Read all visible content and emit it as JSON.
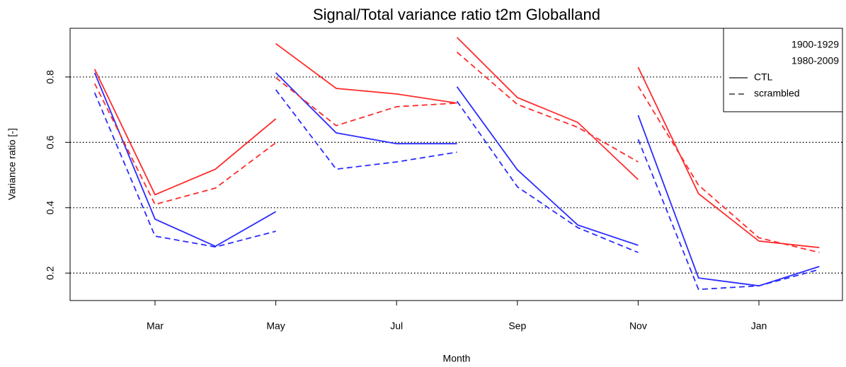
{
  "chart_data": {
    "type": "line",
    "title": "Signal/Total variance ratio t2m Globalland",
    "x_label": "Month",
    "y_label": "Variance ratio [-]",
    "categories": [
      null,
      "Mar",
      null,
      "May",
      null,
      "Jul",
      null,
      "Sep",
      null,
      "Nov",
      null,
      "Jan",
      null
    ],
    "ylim": [
      0.116,
      0.949
    ],
    "yticks": [
      0.2,
      0.4,
      0.6,
      0.8
    ],
    "grid": true,
    "legend": {
      "position": "top-right",
      "entries": [
        {
          "label": "1900-1929",
          "color": "#2b2bff"
        },
        {
          "label": "1980-2009",
          "color": "#ff2b2b"
        },
        {
          "label": "CTL",
          "color": "#555555",
          "dash": "solid"
        },
        {
          "label": "scrambled",
          "color": "#555555",
          "dash": "dashed"
        }
      ]
    },
    "series": [
      {
        "color": "#2b2bff",
        "dash": "solid",
        "values": [
          0.813,
          0.365,
          0.282,
          0.388,
          null,
          null,
          null,
          null,
          null,
          null,
          null,
          null,
          null
        ]
      },
      {
        "color": "#2b2bff",
        "dash": "solid",
        "values": [
          null,
          null,
          null,
          0.813,
          0.629,
          0.596,
          0.596,
          null,
          null,
          null,
          null,
          null,
          null
        ]
      },
      {
        "color": "#2b2bff",
        "dash": "solid",
        "values": [
          null,
          null,
          null,
          null,
          null,
          null,
          0.77,
          0.516,
          0.347,
          0.285,
          null,
          null,
          null
        ]
      },
      {
        "color": "#2b2bff",
        "dash": "solid",
        "values": [
          null,
          null,
          null,
          null,
          null,
          null,
          null,
          null,
          null,
          0.683,
          0.185,
          0.161,
          0.22
        ]
      },
      {
        "color": "#2b2bff",
        "dash": "dashed",
        "values": [
          0.752,
          0.313,
          0.28,
          0.328,
          null,
          null,
          null,
          null,
          null,
          null,
          null,
          null,
          null
        ]
      },
      {
        "color": "#2b2bff",
        "dash": "dashed",
        "values": [
          null,
          null,
          null,
          0.761,
          0.518,
          0.54,
          0.57,
          null,
          null,
          null,
          null,
          null,
          null
        ]
      },
      {
        "color": "#2b2bff",
        "dash": "dashed",
        "values": [
          null,
          null,
          null,
          null,
          null,
          null,
          0.726,
          0.464,
          0.339,
          0.263,
          null,
          null,
          null
        ]
      },
      {
        "color": "#2b2bff",
        "dash": "dashed",
        "values": [
          null,
          null,
          null,
          null,
          null,
          null,
          null,
          null,
          null,
          0.609,
          0.15,
          0.161,
          0.211
        ]
      },
      {
        "color": "#ff2b2b",
        "dash": "solid",
        "values": [
          0.824,
          0.44,
          0.518,
          0.672,
          null,
          null,
          null,
          null,
          null,
          null,
          null,
          null,
          null
        ]
      },
      {
        "color": "#ff2b2b",
        "dash": "solid",
        "values": [
          null,
          null,
          null,
          0.902,
          0.765,
          0.748,
          0.72,
          null,
          null,
          null,
          null,
          null,
          null
        ]
      },
      {
        "color": "#ff2b2b",
        "dash": "solid",
        "values": [
          null,
          null,
          null,
          null,
          null,
          null,
          0.921,
          0.737,
          0.661,
          0.486,
          null,
          null,
          null
        ]
      },
      {
        "color": "#ff2b2b",
        "dash": "solid",
        "values": [
          null,
          null,
          null,
          null,
          null,
          null,
          null,
          null,
          null,
          0.83,
          0.443,
          0.298,
          0.278
        ]
      },
      {
        "color": "#ff2b2b",
        "dash": "dashed",
        "values": [
          0.78,
          0.41,
          0.46,
          0.599,
          null,
          null,
          null,
          null,
          null,
          null,
          null,
          null,
          null
        ]
      },
      {
        "color": "#ff2b2b",
        "dash": "dashed",
        "values": [
          null,
          null,
          null,
          0.798,
          0.651,
          0.709,
          0.72,
          null,
          null,
          null,
          null,
          null,
          null
        ]
      },
      {
        "color": "#ff2b2b",
        "dash": "dashed",
        "values": [
          null,
          null,
          null,
          null,
          null,
          null,
          0.876,
          0.716,
          0.646,
          0.54,
          null,
          null,
          null
        ]
      },
      {
        "color": "#ff2b2b",
        "dash": "dashed",
        "values": [
          null,
          null,
          null,
          null,
          null,
          null,
          null,
          null,
          null,
          0.772,
          0.469,
          0.308,
          0.263
        ]
      }
    ]
  }
}
